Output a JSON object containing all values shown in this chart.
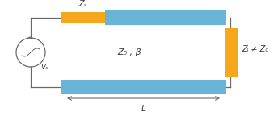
{
  "bg_color": "#ffffff",
  "circuit_color": "#6ab4d8",
  "resistor_color": "#f5a81c",
  "line_color": "#6a6a6a",
  "text_color": "#3a3a3a",
  "label_z0_beta": "Z₀ , β",
  "label_zl": "Zₗ ≠ Z₀",
  "label_zs": "Zₛ",
  "label_vs": "Vₛ",
  "label_L": "L",
  "fig_width": 3.39,
  "fig_height": 1.49,
  "dpi": 100
}
